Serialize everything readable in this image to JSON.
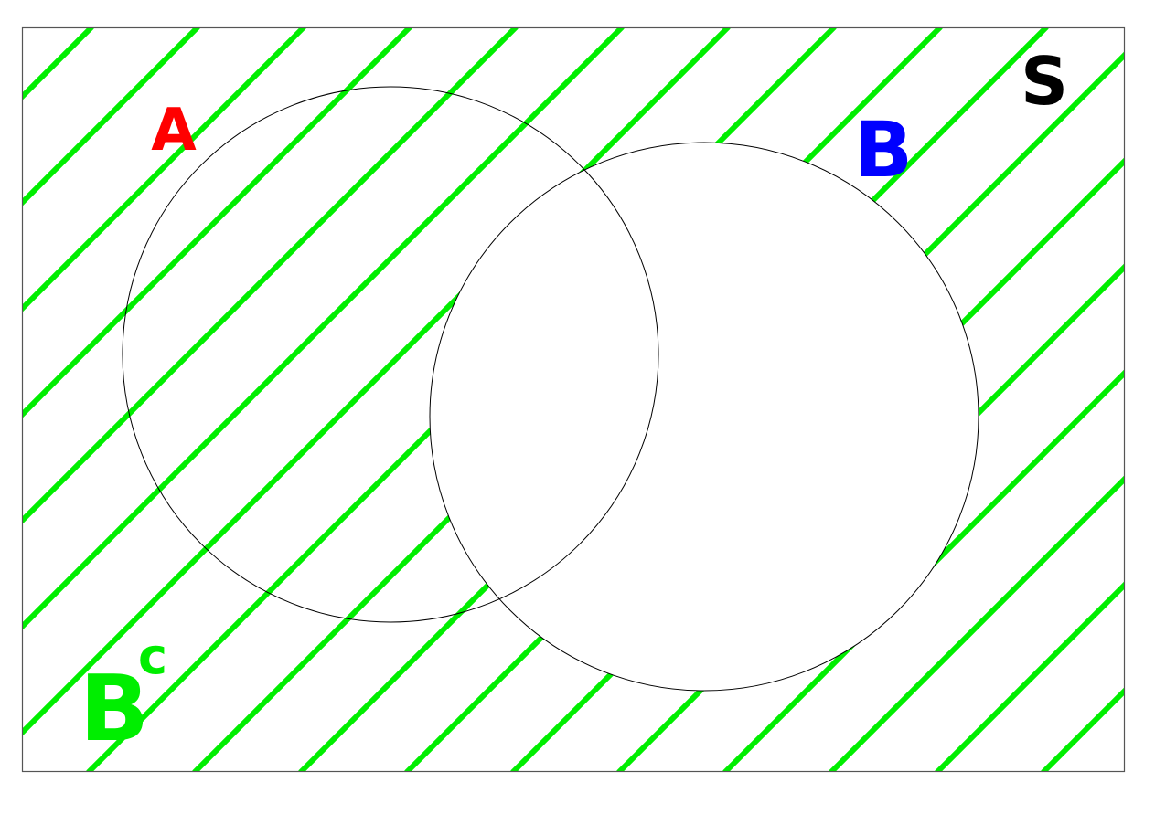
{
  "diagram": {
    "type": "venn",
    "title": "",
    "universal_set_label": "S",
    "sets": [
      {
        "name": "A",
        "label": "A",
        "color": "#ff0000"
      },
      {
        "name": "B",
        "label": "B",
        "color": "#0000ff"
      }
    ],
    "shaded_region": {
      "label": "B",
      "superscript": "c",
      "meaning": "complement of B",
      "color": "#00ee00"
    },
    "colors": {
      "outline": "#000000",
      "frame": "#555555",
      "hatch": "#00ee00",
      "universal_label": "#000000"
    }
  }
}
